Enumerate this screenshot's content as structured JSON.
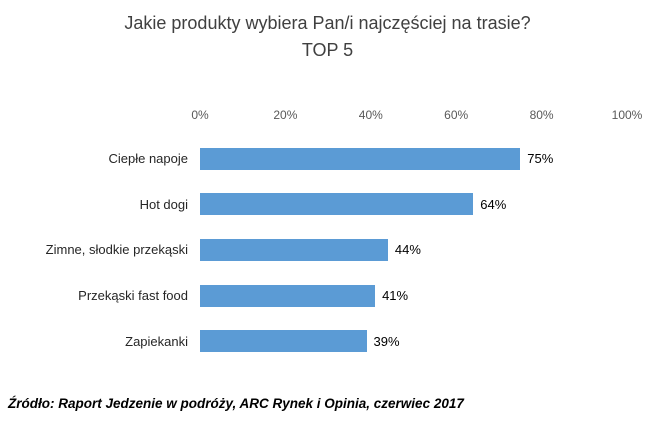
{
  "title": "Jakie produkty wybiera Pan/i najczęściej na trasie?",
  "subtitle": "TOP 5",
  "source": "Źródło: Raport Jedzenie w podróży, ARC Rynek i Opinia, czerwiec 2017",
  "colors": {
    "bar": "#5B9BD5",
    "title_text": "#404040",
    "axis_text": "#595959",
    "label_text": "#262626",
    "value_text": "#000000"
  },
  "chart_data": {
    "type": "bar",
    "orientation": "horizontal",
    "title": "Jakie produkty wybiera Pan/i najczęściej na trasie?",
    "subtitle": "TOP 5",
    "categories": [
      "Ciepłe napoje",
      "Hot dogi",
      "Zimne, słodkie przekąski",
      "Przekąski fast food",
      "Zapiekanki"
    ],
    "values": [
      75,
      64,
      44,
      41,
      39
    ],
    "value_labels": [
      "75%",
      "64%",
      "44%",
      "41%",
      "39%"
    ],
    "x_ticks": [
      "0%",
      "20%",
      "40%",
      "60%",
      "80%",
      "100%"
    ],
    "xlim": [
      0,
      100
    ],
    "xlabel": "",
    "ylabel": "",
    "grid": false,
    "legend": false,
    "axis_position": "top"
  }
}
